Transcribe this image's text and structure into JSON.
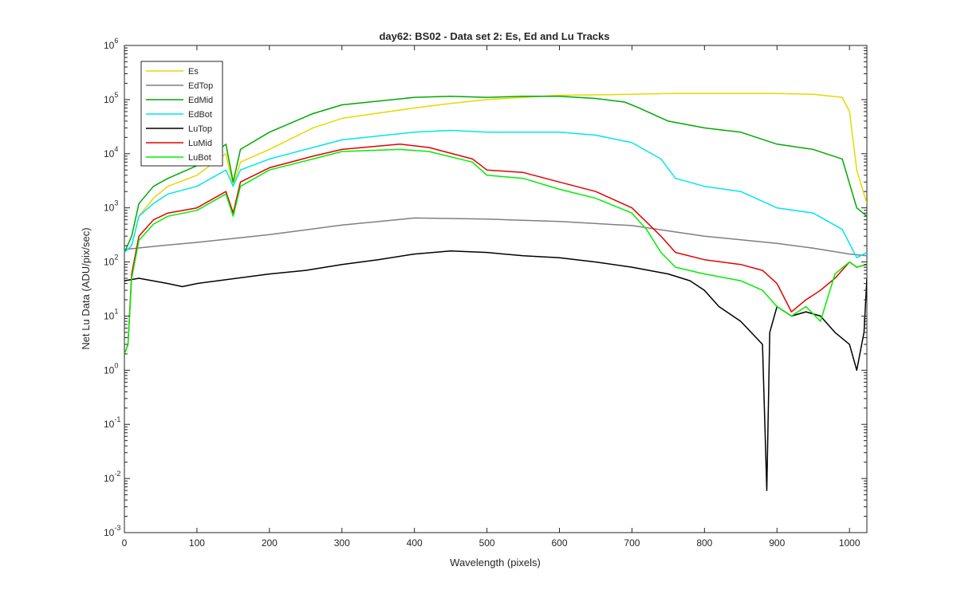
{
  "chart_data": {
    "type": "line",
    "title": "day62: BS02 - Data set 2: Es, Ed and Lu Tracks",
    "xlabel": "Wavelength (pixels)",
    "ylabel": "Net Lu Data (ADU/pix/sec)",
    "xlim": [
      0,
      1024
    ],
    "ylim": [
      0.001,
      1000000
    ],
    "yscale": "log",
    "grid": false,
    "legend_position": "top-left",
    "x_ticks": [
      {
        "value": 0,
        "label": "0"
      },
      {
        "value": 100,
        "label": "100"
      },
      {
        "value": 200,
        "label": "200"
      },
      {
        "value": 300,
        "label": "300"
      },
      {
        "value": 400,
        "label": "400"
      },
      {
        "value": 500,
        "label": "500"
      },
      {
        "value": 600,
        "label": "600"
      },
      {
        "value": 700,
        "label": "700"
      },
      {
        "value": 800,
        "label": "800"
      },
      {
        "value": 900,
        "label": "900"
      },
      {
        "value": 1000,
        "label": "1000"
      }
    ],
    "y_ticks": [
      {
        "exp": -3,
        "base": "10",
        "sup": "-3"
      },
      {
        "exp": -2,
        "base": "10",
        "sup": "-2"
      },
      {
        "exp": -1,
        "base": "10",
        "sup": "-1"
      },
      {
        "exp": 0,
        "base": "10",
        "sup": "0"
      },
      {
        "exp": 1,
        "base": "10",
        "sup": "1"
      },
      {
        "exp": 2,
        "base": "10",
        "sup": "2"
      },
      {
        "exp": 3,
        "base": "10",
        "sup": "3"
      },
      {
        "exp": 4,
        "base": "10",
        "sup": "4"
      },
      {
        "exp": 5,
        "base": "10",
        "sup": "5"
      },
      {
        "exp": 6,
        "base": "10",
        "sup": "6"
      }
    ],
    "series": [
      {
        "name": "Es",
        "color": "#e6d800",
        "x": [
          0,
          10,
          20,
          40,
          60,
          100,
          140,
          150,
          160,
          200,
          260,
          300,
          400,
          450,
          500,
          550,
          600,
          700,
          750,
          800,
          900,
          950,
          990,
          1000,
          1010,
          1024
        ],
        "y": [
          150,
          200,
          700,
          1500,
          2500,
          4000,
          10000,
          2500,
          7000,
          12000,
          30000,
          45000,
          70000,
          85000,
          100000,
          110000,
          120000,
          125000,
          130000,
          130000,
          130000,
          125000,
          110000,
          60000,
          5000,
          1200
        ]
      },
      {
        "name": "EdTop",
        "color": "#7f7f7f",
        "x": [
          0,
          50,
          100,
          200,
          300,
          400,
          500,
          600,
          700,
          800,
          900,
          950,
          1000,
          1024
        ],
        "y": [
          170,
          200,
          230,
          320,
          480,
          650,
          620,
          560,
          470,
          300,
          220,
          180,
          140,
          130
        ]
      },
      {
        "name": "EdMid",
        "color": "#00aa00",
        "x": [
          0,
          10,
          20,
          40,
          60,
          100,
          140,
          150,
          160,
          200,
          260,
          300,
          400,
          450,
          500,
          550,
          600,
          650,
          690,
          710,
          750,
          800,
          850,
          900,
          950,
          990,
          1010,
          1024
        ],
        "y": [
          150,
          300,
          1200,
          2500,
          3500,
          6000,
          15000,
          3000,
          12000,
          25000,
          55000,
          80000,
          110000,
          115000,
          110000,
          115000,
          115000,
          105000,
          90000,
          70000,
          40000,
          30000,
          25000,
          15000,
          12000,
          8000,
          1000,
          700
        ]
      },
      {
        "name": "EdBot",
        "color": "#00e5ee",
        "x": [
          0,
          10,
          20,
          40,
          60,
          100,
          140,
          150,
          160,
          200,
          260,
          300,
          400,
          450,
          500,
          550,
          600,
          650,
          700,
          740,
          760,
          800,
          850,
          900,
          950,
          990,
          1010,
          1024
        ],
        "y": [
          150,
          200,
          700,
          1200,
          1800,
          2500,
          5000,
          2500,
          5000,
          8000,
          13000,
          18000,
          25000,
          27000,
          25000,
          25000,
          25000,
          22000,
          16000,
          8000,
          3500,
          2500,
          2000,
          1000,
          800,
          400,
          120,
          150
        ]
      },
      {
        "name": "LuTop",
        "color": "#000000",
        "x": [
          0,
          20,
          60,
          80,
          100,
          200,
          250,
          300,
          350,
          400,
          450,
          500,
          550,
          600,
          650,
          700,
          750,
          780,
          800,
          820,
          850,
          880,
          886,
          890,
          900,
          920,
          940,
          960,
          980,
          1000,
          1010,
          1020,
          1024
        ],
        "y": [
          45,
          50,
          40,
          35,
          40,
          60,
          70,
          90,
          110,
          140,
          160,
          150,
          130,
          120,
          100,
          80,
          60,
          45,
          30,
          15,
          8,
          3,
          0.006,
          5,
          15,
          10,
          12,
          10,
          5,
          3,
          1,
          5,
          50
        ]
      },
      {
        "name": "LuMid",
        "color": "#e60000",
        "x": [
          0,
          5,
          10,
          20,
          40,
          60,
          100,
          140,
          150,
          160,
          200,
          260,
          300,
          380,
          420,
          480,
          500,
          550,
          600,
          650,
          700,
          740,
          760,
          800,
          850,
          880,
          900,
          920,
          940,
          960,
          980,
          1000,
          1010,
          1024
        ],
        "y": [
          2,
          3,
          60,
          300,
          600,
          800,
          1000,
          2000,
          800,
          3000,
          5500,
          9000,
          12000,
          15000,
          13000,
          8000,
          5000,
          4500,
          3000,
          2000,
          1000,
          300,
          150,
          110,
          90,
          70,
          40,
          12,
          20,
          30,
          50,
          100,
          80,
          90
        ]
      },
      {
        "name": "LuBot",
        "color": "#00ee00",
        "x": [
          0,
          5,
          10,
          20,
          40,
          60,
          100,
          140,
          150,
          160,
          200,
          260,
          300,
          380,
          420,
          480,
          500,
          550,
          600,
          650,
          700,
          720,
          740,
          760,
          800,
          850,
          880,
          900,
          920,
          940,
          960,
          980,
          1000,
          1010,
          1024
        ],
        "y": [
          2,
          3,
          50,
          250,
          500,
          700,
          900,
          1800,
          700,
          2500,
          5000,
          8000,
          11000,
          12000,
          11000,
          7000,
          4000,
          3500,
          2200,
          1500,
          800,
          400,
          150,
          80,
          60,
          45,
          30,
          15,
          10,
          15,
          8,
          60,
          100,
          80,
          90
        ]
      }
    ]
  }
}
